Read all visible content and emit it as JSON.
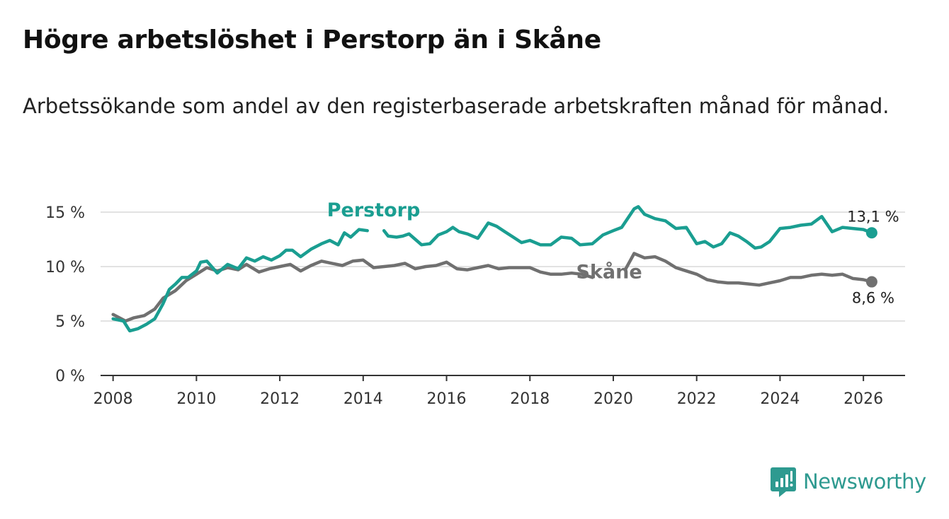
{
  "title": "Högre arbetslöshet i Perstorp än i Skåne",
  "subtitle": "Arbetssökande som andel av den registerbaserade arbetskraften månad för månad.",
  "brand": {
    "name": "Newsworthy",
    "icon": "newsworthy-logo-icon",
    "color": "#2e9a90"
  },
  "chart_data": {
    "type": "line",
    "title": "Högre arbetslöshet i Perstorp än i Skåne",
    "xlabel": "",
    "ylabel": "",
    "xlim": [
      2007.7,
      2027.0
    ],
    "ylim": [
      0,
      15
    ],
    "x_ticks": [
      2008,
      2010,
      2012,
      2014,
      2016,
      2018,
      2020,
      2022,
      2024,
      2026
    ],
    "x_tick_labels": [
      "2008",
      "2010",
      "2012",
      "2014",
      "2016",
      "2018",
      "2020",
      "2022",
      "2024",
      "2026"
    ],
    "y_ticks": [
      0,
      5,
      10,
      15
    ],
    "y_tick_labels": [
      "0 %",
      "5 %",
      "10 %",
      "15 %"
    ],
    "grid": "horizontal",
    "series": [
      {
        "name": "Perstorp",
        "color": "#1a9e91",
        "end_label": "13,1 %",
        "points": [
          [
            2008.0,
            5.2
          ],
          [
            2008.25,
            5.0
          ],
          [
            2008.4,
            4.1
          ],
          [
            2008.6,
            4.3
          ],
          [
            2008.8,
            4.7
          ],
          [
            2009.0,
            5.2
          ],
          [
            2009.2,
            6.6
          ],
          [
            2009.35,
            7.9
          ],
          [
            2009.5,
            8.4
          ],
          [
            2009.65,
            9.0
          ],
          [
            2009.8,
            9.0
          ],
          [
            2010.0,
            9.6
          ],
          [
            2010.1,
            10.4
          ],
          [
            2010.25,
            10.5
          ],
          [
            2010.5,
            9.4
          ],
          [
            2010.75,
            10.2
          ],
          [
            2011.0,
            9.8
          ],
          [
            2011.2,
            10.8
          ],
          [
            2011.4,
            10.5
          ],
          [
            2011.6,
            10.9
          ],
          [
            2011.8,
            10.6
          ],
          [
            2012.0,
            11.0
          ],
          [
            2012.15,
            11.5
          ],
          [
            2012.3,
            11.5
          ],
          [
            2012.5,
            10.9
          ],
          [
            2012.75,
            11.6
          ],
          [
            2013.0,
            12.1
          ],
          [
            2013.2,
            12.4
          ],
          [
            2013.4,
            12.0
          ],
          [
            2013.55,
            13.1
          ],
          [
            2013.7,
            12.7
          ],
          [
            2013.9,
            13.4
          ],
          [
            2014.1,
            13.3
          ],
          null,
          [
            2014.5,
            13.3
          ],
          [
            2014.6,
            12.8
          ],
          [
            2014.8,
            12.7
          ],
          [
            2014.95,
            12.8
          ],
          [
            2015.1,
            13.0
          ],
          [
            2015.25,
            12.5
          ],
          [
            2015.4,
            12.0
          ],
          [
            2015.6,
            12.1
          ],
          [
            2015.8,
            12.9
          ],
          [
            2016.0,
            13.2
          ],
          [
            2016.15,
            13.6
          ],
          [
            2016.3,
            13.2
          ],
          [
            2016.5,
            13.0
          ],
          [
            2016.75,
            12.6
          ],
          [
            2017.0,
            14.0
          ],
          [
            2017.2,
            13.7
          ],
          [
            2017.4,
            13.2
          ],
          [
            2017.6,
            12.7
          ],
          [
            2017.8,
            12.2
          ],
          [
            2018.0,
            12.4
          ],
          [
            2018.25,
            12.0
          ],
          [
            2018.5,
            12.0
          ],
          [
            2018.75,
            12.7
          ],
          [
            2019.0,
            12.6
          ],
          [
            2019.2,
            12.0
          ],
          [
            2019.5,
            12.1
          ],
          [
            2019.75,
            12.9
          ],
          [
            2020.0,
            13.3
          ],
          [
            2020.2,
            13.6
          ],
          [
            2020.5,
            15.3
          ],
          [
            2020.6,
            15.5
          ],
          [
            2020.75,
            14.8
          ],
          [
            2021.0,
            14.4
          ],
          [
            2021.25,
            14.2
          ],
          [
            2021.5,
            13.5
          ],
          [
            2021.75,
            13.6
          ],
          [
            2022.0,
            12.1
          ],
          [
            2022.2,
            12.3
          ],
          [
            2022.4,
            11.8
          ],
          [
            2022.6,
            12.1
          ],
          [
            2022.8,
            13.1
          ],
          [
            2023.0,
            12.8
          ],
          [
            2023.2,
            12.3
          ],
          [
            2023.4,
            11.7
          ],
          [
            2023.55,
            11.8
          ],
          [
            2023.75,
            12.3
          ],
          [
            2024.0,
            13.5
          ],
          [
            2024.25,
            13.6
          ],
          [
            2024.5,
            13.8
          ],
          [
            2024.75,
            13.9
          ],
          [
            2025.0,
            14.6
          ],
          [
            2025.25,
            13.2
          ],
          [
            2025.5,
            13.6
          ],
          [
            2025.75,
            13.5
          ],
          [
            2026.0,
            13.4
          ],
          [
            2026.2,
            13.1
          ]
        ]
      },
      {
        "name": "Skåne",
        "color": "#707070",
        "end_label": "8,6 %",
        "points": [
          [
            2008.0,
            5.6
          ],
          [
            2008.3,
            5.0
          ],
          [
            2008.5,
            5.3
          ],
          [
            2008.75,
            5.5
          ],
          [
            2009.0,
            6.1
          ],
          [
            2009.2,
            7.1
          ],
          [
            2009.5,
            7.8
          ],
          [
            2009.75,
            8.7
          ],
          [
            2010.0,
            9.3
          ],
          [
            2010.25,
            9.9
          ],
          [
            2010.5,
            9.6
          ],
          [
            2010.75,
            9.9
          ],
          [
            2011.0,
            9.7
          ],
          [
            2011.2,
            10.2
          ],
          [
            2011.5,
            9.5
          ],
          [
            2011.75,
            9.8
          ],
          [
            2012.0,
            10.0
          ],
          [
            2012.25,
            10.2
          ],
          [
            2012.5,
            9.6
          ],
          [
            2012.75,
            10.1
          ],
          [
            2013.0,
            10.5
          ],
          [
            2013.25,
            10.3
          ],
          [
            2013.5,
            10.1
          ],
          [
            2013.75,
            10.5
          ],
          [
            2014.0,
            10.6
          ],
          [
            2014.25,
            9.9
          ],
          [
            2014.5,
            10.0
          ],
          [
            2014.75,
            10.1
          ],
          [
            2015.0,
            10.3
          ],
          [
            2015.25,
            9.8
          ],
          [
            2015.5,
            10.0
          ],
          [
            2015.75,
            10.1
          ],
          [
            2016.0,
            10.4
          ],
          [
            2016.25,
            9.8
          ],
          [
            2016.5,
            9.7
          ],
          [
            2016.75,
            9.9
          ],
          [
            2017.0,
            10.1
          ],
          [
            2017.25,
            9.8
          ],
          [
            2017.5,
            9.9
          ],
          [
            2017.75,
            9.9
          ],
          [
            2018.0,
            9.9
          ],
          [
            2018.25,
            9.5
          ],
          [
            2018.5,
            9.3
          ],
          [
            2018.75,
            9.3
          ],
          [
            2019.0,
            9.4
          ],
          [
            2019.25,
            9.3
          ],
          [
            2019.5,
            9.0
          ],
          null,
          [
            2020.3,
            9.8
          ],
          [
            2020.5,
            11.2
          ],
          [
            2020.75,
            10.8
          ],
          [
            2021.0,
            10.9
          ],
          [
            2021.25,
            10.5
          ],
          [
            2021.5,
            9.9
          ],
          [
            2021.75,
            9.6
          ],
          [
            2022.0,
            9.3
          ],
          [
            2022.25,
            8.8
          ],
          [
            2022.5,
            8.6
          ],
          [
            2022.75,
            8.5
          ],
          [
            2023.0,
            8.5
          ],
          [
            2023.25,
            8.4
          ],
          [
            2023.5,
            8.3
          ],
          [
            2023.75,
            8.5
          ],
          [
            2024.0,
            8.7
          ],
          [
            2024.25,
            9.0
          ],
          [
            2024.5,
            9.0
          ],
          [
            2024.75,
            9.2
          ],
          [
            2025.0,
            9.3
          ],
          [
            2025.25,
            9.2
          ],
          [
            2025.5,
            9.3
          ],
          [
            2025.75,
            8.9
          ],
          [
            2026.0,
            8.8
          ],
          [
            2026.2,
            8.6
          ]
        ]
      }
    ]
  }
}
